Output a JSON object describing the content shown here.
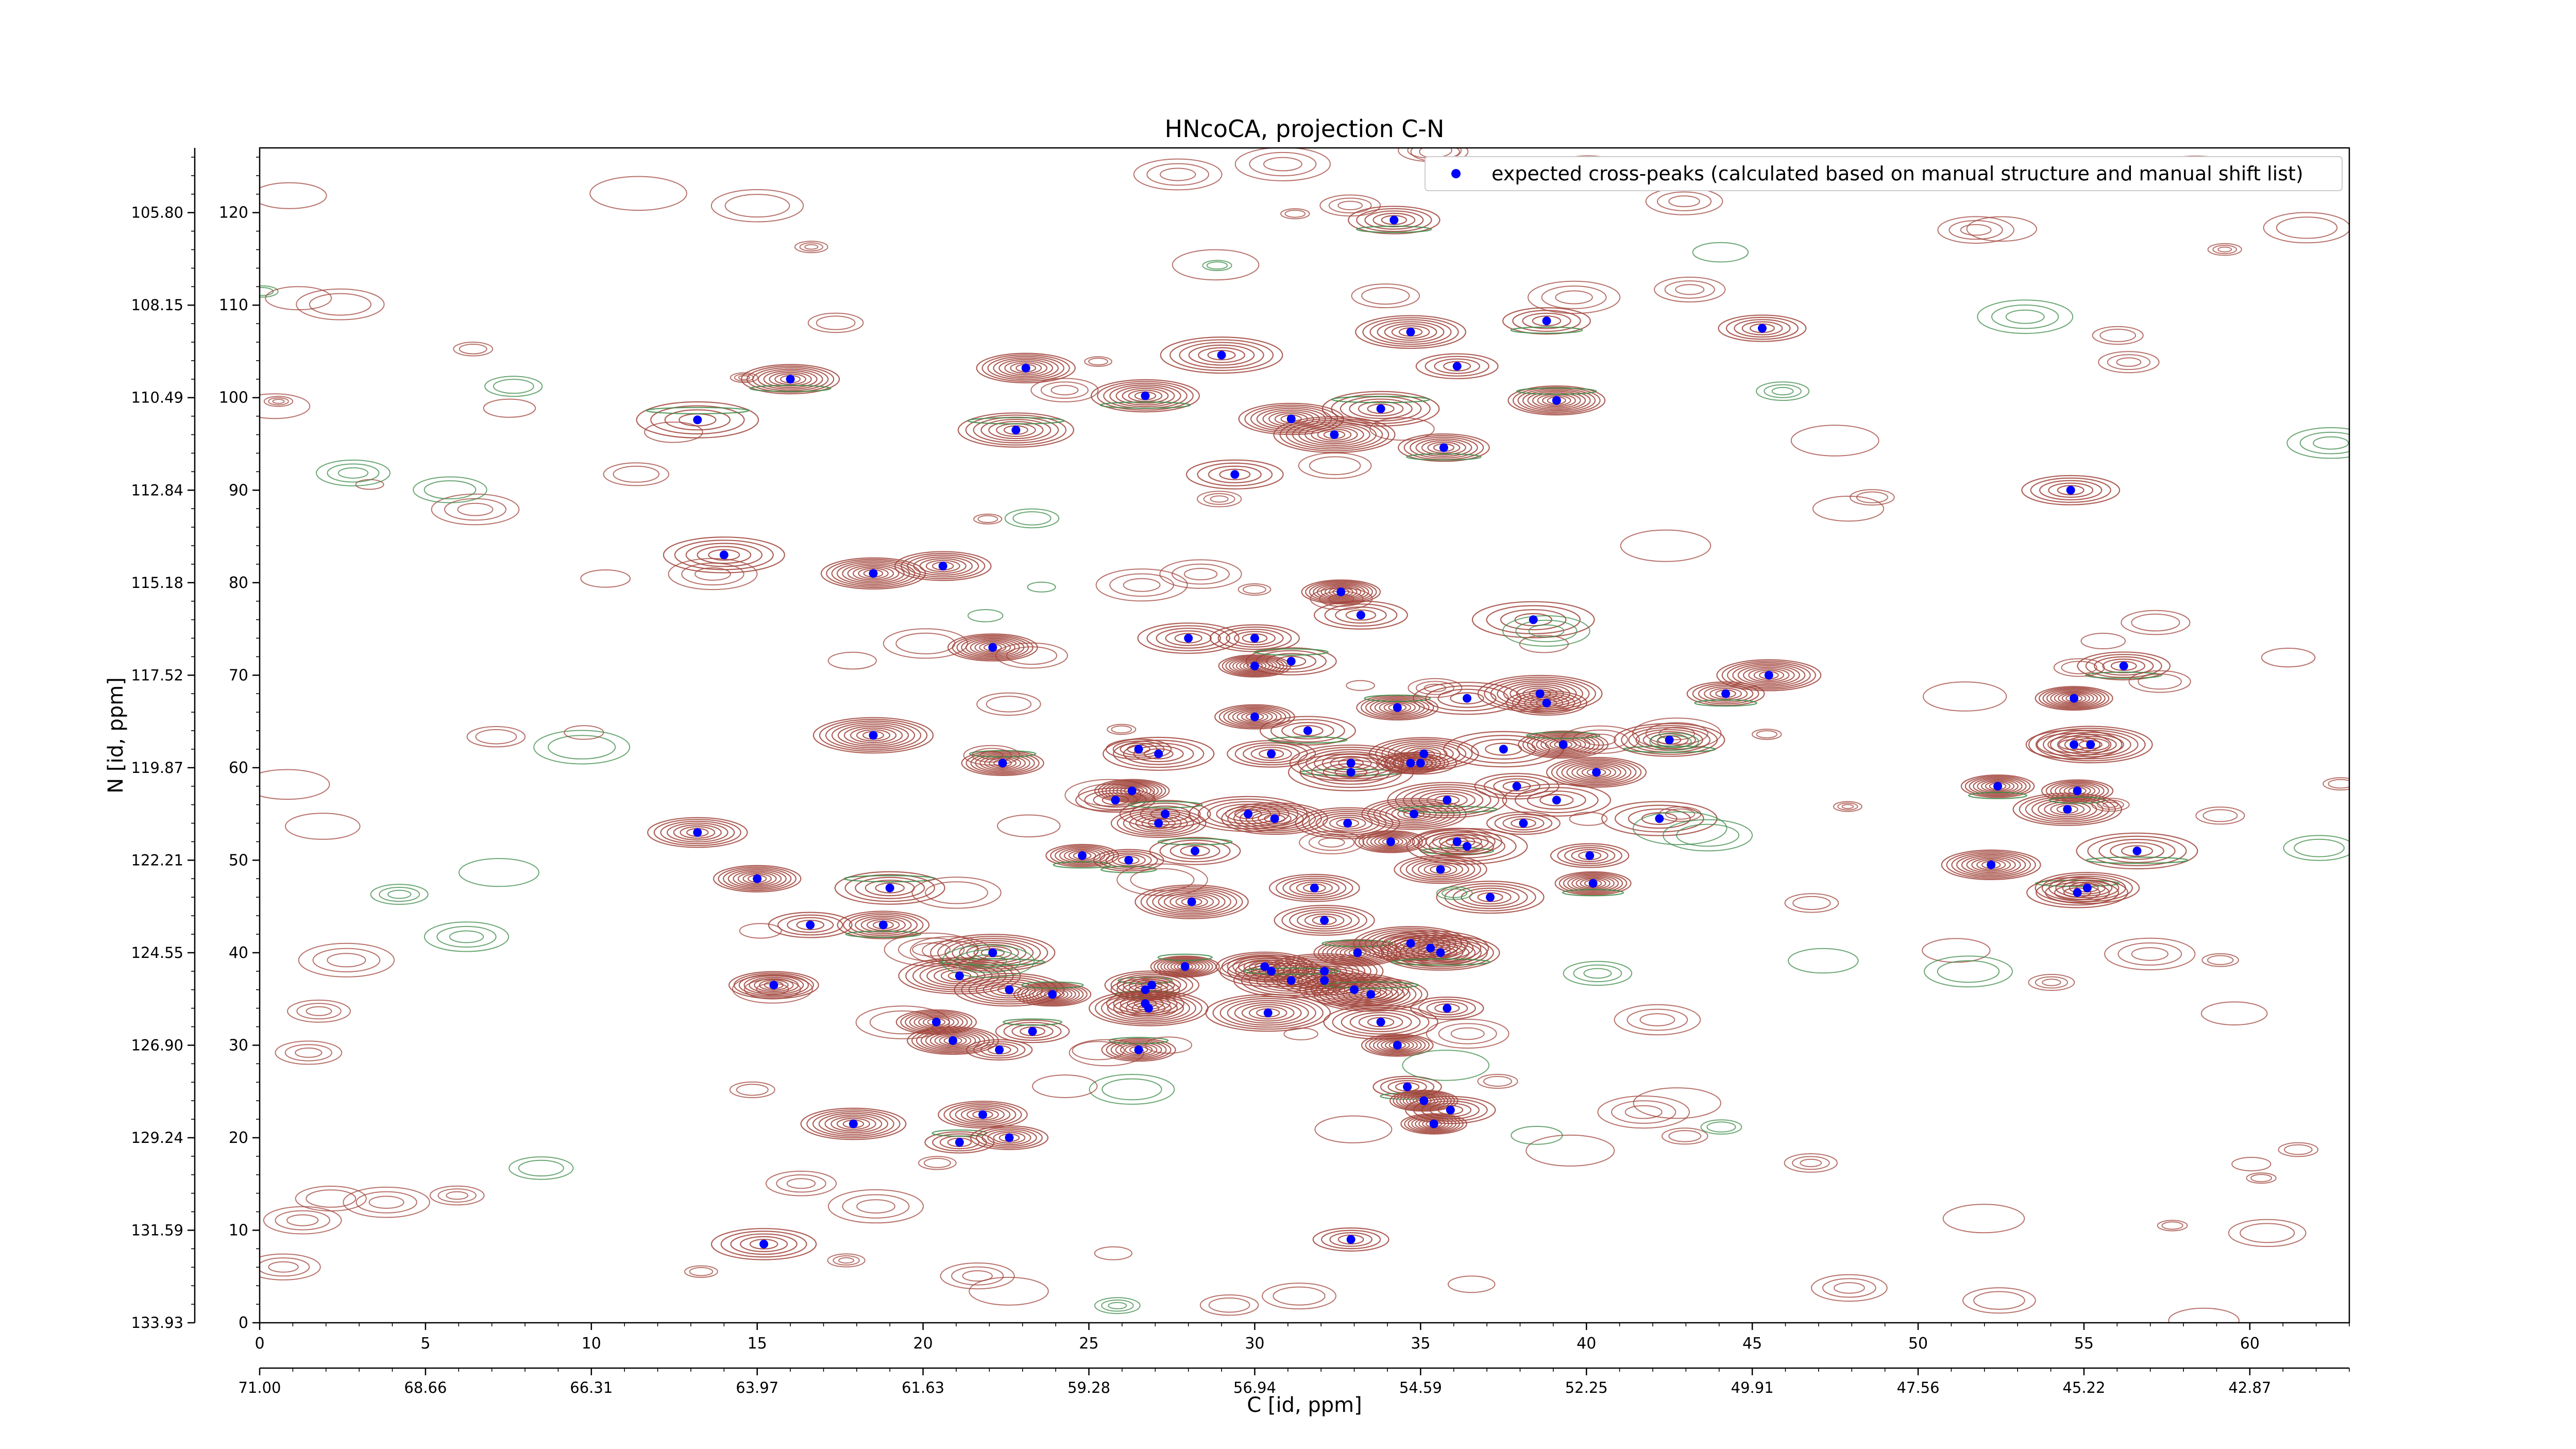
{
  "chart_data": {
    "type": "scatter",
    "title": "HNcoCA, projection C-N",
    "xlabel": "C [id, ppm]",
    "ylabel": "N [id, ppm]",
    "xlim": [
      0,
      63
    ],
    "ylim": [
      0,
      127
    ],
    "x_ticks": [
      0,
      5,
      10,
      15,
      20,
      25,
      30,
      35,
      40,
      45,
      50,
      55,
      60
    ],
    "y_ticks": [
      0,
      10,
      20,
      30,
      40,
      50,
      60,
      70,
      80,
      90,
      100,
      110,
      120
    ],
    "x_ppm_ticks": [
      "71.00",
      "68.66",
      "66.31",
      "63.97",
      "61.63",
      "59.28",
      "56.94",
      "54.59",
      "52.25",
      "49.91",
      "47.56",
      "45.22",
      "42.87"
    ],
    "y_ppm_ticks": [
      "133.93",
      "131.59",
      "129.24",
      "126.90",
      "124.55",
      "122.21",
      "119.87",
      "117.52",
      "115.18",
      "112.84",
      "110.49",
      "108.15",
      "105.80"
    ],
    "legend": {
      "label": "expected cross-peaks (calculated based on manual structure and manual shift list)",
      "position": "top-right"
    },
    "marker_color": "#0000ff",
    "contour_colors": {
      "positive": "#a0433a",
      "negative": "#3a8a45"
    },
    "series": [
      {
        "points": [
          [
            13.2,
            97.6
          ],
          [
            16,
            102
          ],
          [
            23.1,
            103.2
          ],
          [
            22.8,
            96.5
          ],
          [
            26.7,
            100.2
          ],
          [
            29,
            104.6
          ],
          [
            29.4,
            91.7
          ],
          [
            31.1,
            97.7
          ],
          [
            32.4,
            96
          ],
          [
            33.8,
            98.8
          ],
          [
            34.2,
            119.2
          ],
          [
            34.7,
            107.1
          ],
          [
            36.1,
            103.4
          ],
          [
            35.7,
            94.6
          ],
          [
            38.8,
            108.3
          ],
          [
            39.1,
            99.7
          ],
          [
            45.3,
            107.5
          ],
          [
            54.6,
            90
          ],
          [
            14,
            83
          ],
          [
            18.5,
            81
          ],
          [
            20.6,
            81.8
          ],
          [
            22.1,
            73
          ],
          [
            28,
            74
          ],
          [
            30,
            74
          ],
          [
            30,
            71
          ],
          [
            31.1,
            71.5
          ],
          [
            32.6,
            79
          ],
          [
            33.2,
            76.5
          ],
          [
            38.4,
            76
          ],
          [
            18.5,
            63.5
          ],
          [
            22.4,
            60.5
          ],
          [
            26.5,
            62
          ],
          [
            27.1,
            61.5
          ],
          [
            30,
            65.5
          ],
          [
            30.5,
            61.5
          ],
          [
            31.6,
            64
          ],
          [
            32.9,
            60.5
          ],
          [
            32.9,
            59.5
          ],
          [
            34.3,
            66.5
          ],
          [
            34.7,
            60.5
          ],
          [
            35.1,
            61.5
          ],
          [
            35,
            60.5
          ],
          [
            36.4,
            67.5
          ],
          [
            37.5,
            62
          ],
          [
            38.6,
            68
          ],
          [
            38.8,
            67
          ],
          [
            39.3,
            62.5
          ],
          [
            40.3,
            59.5
          ],
          [
            42.5,
            63
          ],
          [
            44.2,
            68
          ],
          [
            45.5,
            70
          ],
          [
            54.7,
            67.5
          ],
          [
            54.7,
            62.5
          ],
          [
            55.2,
            62.5
          ],
          [
            56.2,
            71
          ],
          [
            13.2,
            53
          ],
          [
            15,
            48
          ],
          [
            16.6,
            43
          ],
          [
            19,
            47
          ],
          [
            18.8,
            43
          ],
          [
            21.1,
            37.5
          ],
          [
            22.1,
            40
          ],
          [
            22.6,
            36
          ],
          [
            23.3,
            31.5
          ],
          [
            22.3,
            29.5
          ],
          [
            23.9,
            35.5
          ],
          [
            20.4,
            32.5
          ],
          [
            20.9,
            30.5
          ],
          [
            15.5,
            36.5
          ],
          [
            25.8,
            56.5
          ],
          [
            26.3,
            57.5
          ],
          [
            24.8,
            50.5
          ],
          [
            26.2,
            50
          ],
          [
            27.1,
            54
          ],
          [
            27.3,
            55
          ],
          [
            28.2,
            51
          ],
          [
            28.1,
            45.5
          ],
          [
            29.8,
            55
          ],
          [
            30.6,
            54.5
          ],
          [
            31.8,
            47
          ],
          [
            32.1,
            43.5
          ],
          [
            32.8,
            54
          ],
          [
            32.1,
            38
          ],
          [
            32.1,
            37
          ],
          [
            33.1,
            40
          ],
          [
            33,
            36
          ],
          [
            33.5,
            35.5
          ],
          [
            34.1,
            52
          ],
          [
            34.8,
            55
          ],
          [
            35.6,
            49
          ],
          [
            35.8,
            56.5
          ],
          [
            36.1,
            52
          ],
          [
            36.4,
            51.5
          ],
          [
            37.1,
            46
          ],
          [
            37.9,
            58
          ],
          [
            38.1,
            54
          ],
          [
            39.1,
            56.5
          ],
          [
            40.1,
            50.5
          ],
          [
            40.2,
            47.5
          ],
          [
            42.2,
            54.5
          ],
          [
            52.4,
            58
          ],
          [
            52.2,
            49.5
          ],
          [
            54.5,
            55.5
          ],
          [
            54.8,
            57.5
          ],
          [
            54.8,
            46.5
          ],
          [
            55.1,
            47
          ],
          [
            56.6,
            51
          ],
          [
            33.8,
            32.5
          ],
          [
            34.3,
            30
          ],
          [
            35.3,
            40.5
          ],
          [
            34.7,
            41
          ],
          [
            35.6,
            40
          ],
          [
            35.8,
            34
          ],
          [
            27.9,
            38.5
          ],
          [
            26.8,
            34
          ],
          [
            26.7,
            34.5
          ],
          [
            26.5,
            29.5
          ],
          [
            26.7,
            36
          ],
          [
            26.9,
            36.5
          ],
          [
            30.3,
            38.5
          ],
          [
            30.5,
            38
          ],
          [
            30.4,
            33.5
          ],
          [
            31.1,
            37
          ],
          [
            17.9,
            21.5
          ],
          [
            21.8,
            22.5
          ],
          [
            21.1,
            19.5
          ],
          [
            22.6,
            20
          ],
          [
            34.6,
            25.5
          ],
          [
            35.1,
            24
          ],
          [
            35.9,
            23
          ],
          [
            35.4,
            21.5
          ],
          [
            15.2,
            8.5
          ],
          [
            32.9,
            9
          ]
        ]
      }
    ]
  }
}
